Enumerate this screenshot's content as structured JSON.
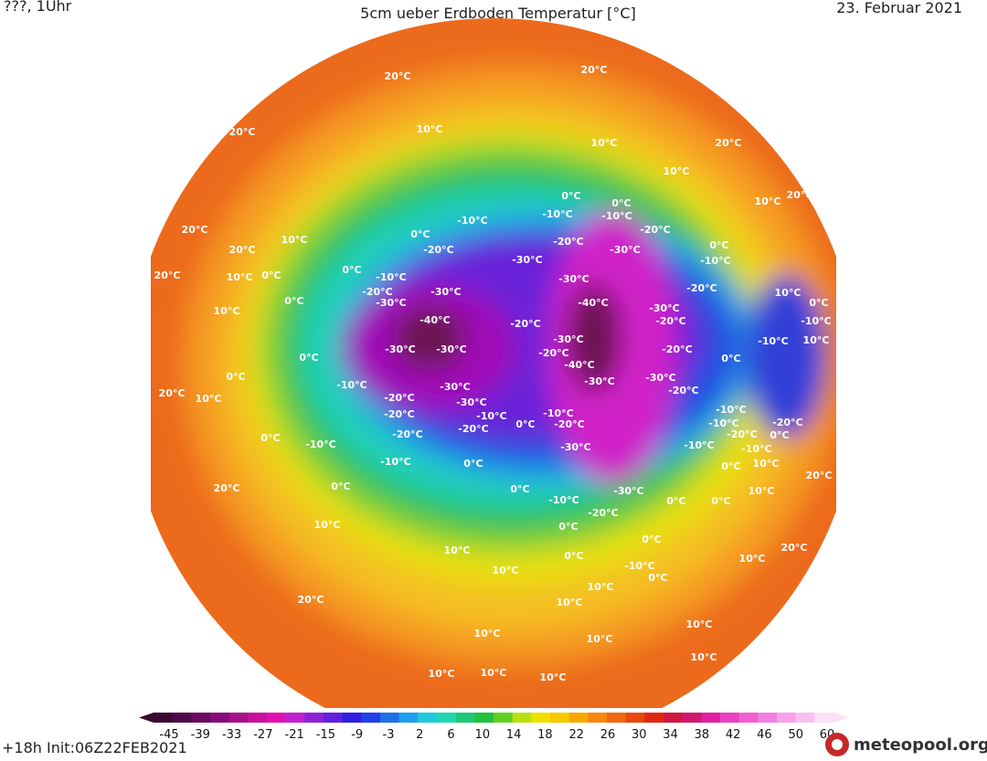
{
  "header": {
    "left": "???, 1Uhr",
    "title": "5cm ueber Erdboden Temperatur [°C]",
    "date": "23. Februar 2021"
  },
  "footer": {
    "init": "+18h Init:06Z22FEB2021",
    "logo": "meteopool.org"
  },
  "scale": {
    "ticks": [
      -45,
      -39,
      -33,
      -27,
      -21,
      -15,
      -9,
      -3,
      2,
      6,
      10,
      14,
      18,
      22,
      26,
      30,
      34,
      38,
      42,
      46,
      50,
      60
    ]
  },
  "contour_labels": [
    "20°C",
    "20°C",
    "20°C",
    "20°C",
    "20°C",
    "20°C",
    "20°C",
    "20°C",
    "20°C",
    "20°C",
    "20°C",
    "20°C",
    "20°C",
    "10°C",
    "10°C",
    "10°C",
    "10°C",
    "10°C",
    "10°C",
    "10°C",
    "10°C",
    "10°C",
    "10°C",
    "10°C",
    "10°C",
    "10°C",
    "10°C",
    "10°C",
    "10°C",
    "10°C",
    "10°C",
    "10°C",
    "10°C",
    "10°C",
    "10°C",
    "10°C",
    "10°C",
    "10°C",
    "0°C",
    "0°C",
    "0°C",
    "0°C",
    "0°C",
    "0°C",
    "0°C",
    "0°C",
    "0°C",
    "0°C",
    "0°C",
    "0°C",
    "0°C",
    "0°C",
    "0°C",
    "0°C",
    "0°C",
    "0°C",
    "0°C",
    "0°C",
    "0°C",
    "0°C",
    "0°C",
    "0°C",
    "-10°C",
    "-10°C",
    "-10°C",
    "-10°C",
    "-10°C",
    "-10°C",
    "-10°C",
    "-10°C",
    "-10°C",
    "-10°C",
    "-10°C",
    "-10°C",
    "-10°C",
    "-10°C",
    "-10°C",
    "-10°C",
    "-10°C",
    "-10°C",
    "-20°C",
    "-20°C",
    "-20°C",
    "-20°C",
    "-20°C",
    "-20°C",
    "-20°C",
    "-20°C",
    "-20°C",
    "-20°C",
    "-20°C",
    "-20°C",
    "-20°C",
    "-20°C",
    "-20°C",
    "-20°C",
    "-20°C",
    "-20°C",
    "-30°C",
    "-30°C",
    "-30°C",
    "-30°C",
    "-30°C",
    "-30°C",
    "-30°C",
    "-30°C",
    "-30°C",
    "-30°C",
    "-30°C",
    "-30°C",
    "-30°C",
    "-30°C",
    "-30°C",
    "-40°C",
    "-40°C",
    "-40°C"
  ]
}
